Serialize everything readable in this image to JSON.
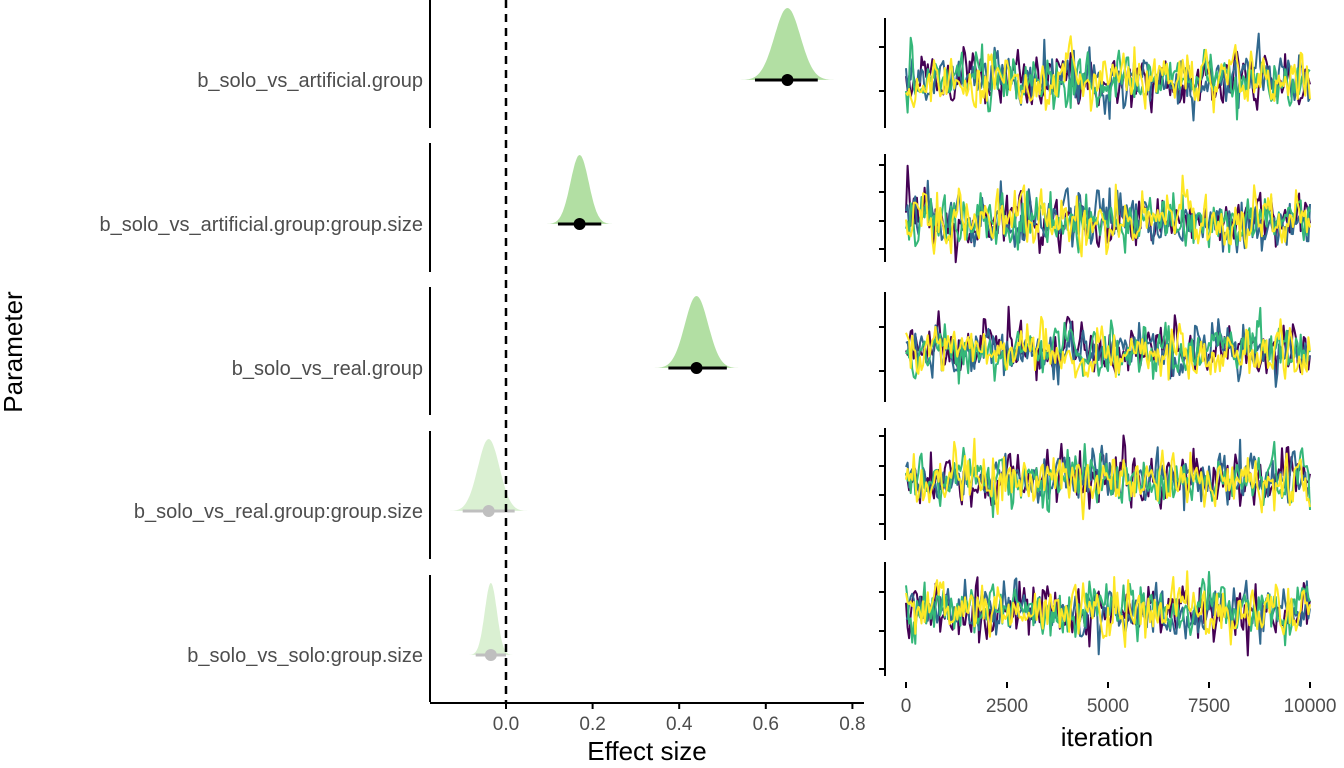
{
  "chart_data": [
    {
      "type": "forest",
      "title": "",
      "xlabel": "Effect size",
      "ylabel": "Parameter",
      "xlim": [
        -0.18,
        0.8
      ],
      "x_ticks": [
        "0.0",
        "0.2",
        "0.4",
        "0.6",
        "0.8"
      ],
      "x_tick_values": [
        0.0,
        0.2,
        0.4,
        0.6,
        0.8
      ],
      "reference_line": 0.0,
      "parameters": [
        {
          "label": "b_solo_vs_artificial.group",
          "mean": 0.65,
          "lower": 0.575,
          "upper": 0.72,
          "sd": 0.03,
          "highlight": true
        },
        {
          "label": "b_solo_vs_artificial.group:group.size",
          "mean": 0.17,
          "lower": 0.12,
          "upper": 0.22,
          "sd": 0.021,
          "highlight": true
        },
        {
          "label": "b_solo_vs_real.group",
          "mean": 0.44,
          "lower": 0.375,
          "upper": 0.51,
          "sd": 0.027,
          "highlight": true
        },
        {
          "label": "b_solo_vs_real.group:group.size",
          "mean": -0.04,
          "lower": -0.1,
          "upper": 0.02,
          "sd": 0.025,
          "highlight": false
        },
        {
          "label": "b_solo_vs_solo:group.size",
          "mean": -0.035,
          "lower": -0.07,
          "upper": 0.0,
          "sd": 0.014,
          "highlight": false
        }
      ],
      "colors": {
        "highlight_fill": "#b2dfa3",
        "muted_fill": "#daf0d2",
        "highlight_point": "#000000",
        "muted_point": "#bfbfbf",
        "reference_line": "#000000"
      }
    },
    {
      "type": "line",
      "title": "",
      "xlabel": "iteration",
      "xlim": [
        0,
        10000
      ],
      "x_ticks": [
        "0",
        "2500",
        "5000",
        "7500",
        "10000"
      ],
      "x_tick_values": [
        0,
        2500,
        5000,
        7500,
        10000
      ],
      "chains": 4,
      "chain_colors": [
        "#440154",
        "#31688e",
        "#35b779",
        "#fde725"
      ],
      "panels": [
        {
          "parameter": "b_solo_vs_artificial.group",
          "center": 0.65,
          "spread": 0.08
        },
        {
          "parameter": "b_solo_vs_artificial.group:group.size",
          "center": 0.17,
          "spread": 0.06
        },
        {
          "parameter": "b_solo_vs_real.group",
          "center": 0.44,
          "spread": 0.07
        },
        {
          "parameter": "b_solo_vs_real.group:group.size",
          "center": -0.04,
          "spread": 0.07
        },
        {
          "parameter": "b_solo_vs_solo:group.size",
          "center": -0.035,
          "spread": 0.04
        }
      ]
    }
  ]
}
